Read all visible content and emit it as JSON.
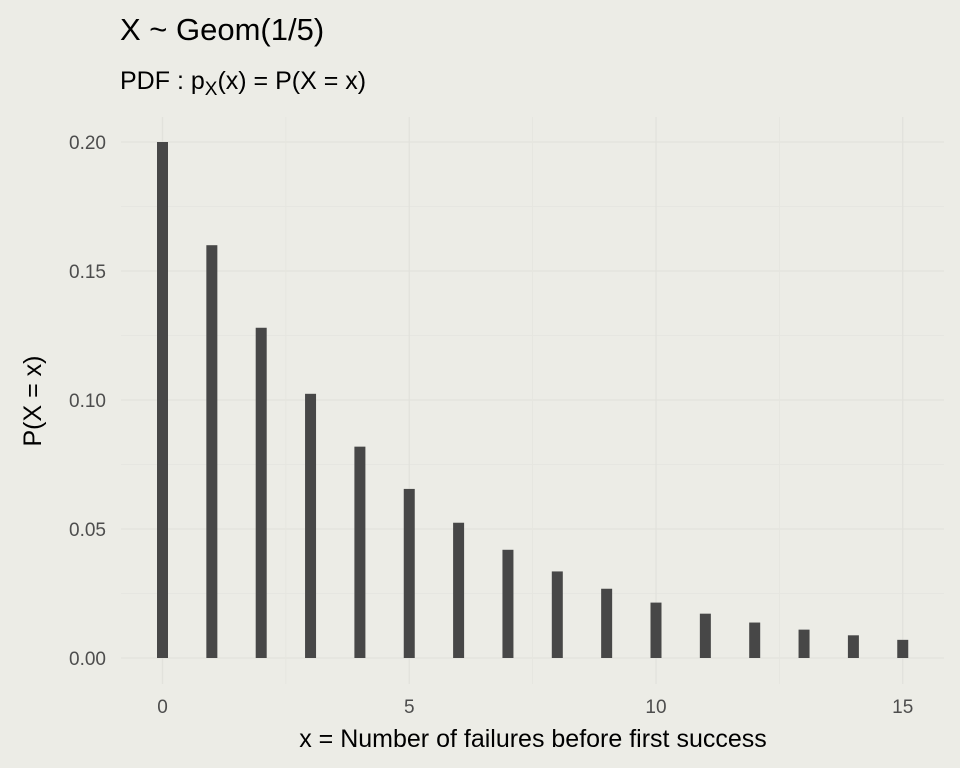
{
  "chart_data": {
    "type": "bar",
    "title": "X ~ Geom(1/5)",
    "subtitle": "PDF : pX(x) = P(X = x)",
    "subtitle_parts": {
      "prefix": "PDF : p",
      "subscript": "X",
      "suffix": "(x) = P(X = x)"
    },
    "xlabel": "x = Number of failures before first success",
    "ylabel": "P(X = x)",
    "x": [
      0,
      1,
      2,
      3,
      4,
      5,
      6,
      7,
      8,
      9,
      10,
      11,
      12,
      13,
      14,
      15
    ],
    "values": [
      0.2,
      0.16,
      0.128,
      0.1024,
      0.08192,
      0.065536,
      0.0524288,
      0.04194304,
      0.033554432,
      0.0268435456,
      0.02147483648,
      0.017179869184,
      0.0137438953472,
      0.01099511627776,
      0.008796093022208,
      0.0070368744177664
    ],
    "xlim": [
      -0.5,
      15.5
    ],
    "ylim": [
      0,
      0.2
    ],
    "x_ticks": [
      0,
      5,
      10,
      15
    ],
    "x_tick_labels": [
      "0",
      "5",
      "10",
      "15"
    ],
    "y_ticks": [
      0,
      0.05,
      0.1,
      0.15,
      0.2
    ],
    "y_tick_labels": [
      "0.00",
      "0.05",
      "0.10",
      "0.15",
      "0.20"
    ],
    "grid": true,
    "legend": "none",
    "colors": {
      "background": "#ECECE6",
      "bar": "#474747",
      "grid": "#E2E2DC",
      "tick_text": "#4D4D4D",
      "title_text": "#000000"
    }
  }
}
